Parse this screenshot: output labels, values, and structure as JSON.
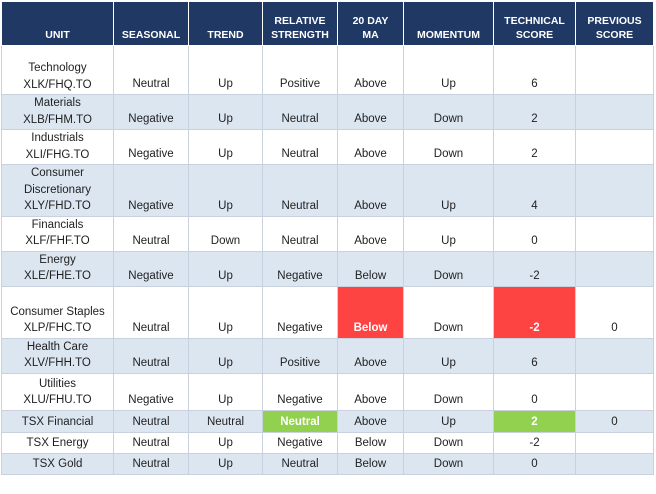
{
  "headers": {
    "unit": "UNIT",
    "seasonal": "SEASONAL",
    "trend": "TREND",
    "relative_strength_1": "RELATIVE",
    "relative_strength_2": "STRENGTH",
    "ma_1": "20 DAY",
    "ma_2": "MA",
    "momentum": "MOMENTUM",
    "technical_score_1": "TECHNICAL",
    "technical_score_2": "SCORE",
    "previous_score_1": "PREVIOUS",
    "previous_score_2": "SCORE"
  },
  "colors": {
    "header_bg": "#1f3864",
    "row_shade": "#dce6f1",
    "highlight_red": "#fe4343",
    "highlight_green": "#92d050"
  },
  "rows": [
    {
      "unit_lines": [
        "Technology",
        "XLK/FHQ.TO"
      ],
      "seasonal": "Neutral",
      "trend": "Up",
      "relative_strength": "Positive",
      "ma": "Above",
      "momentum": "Up",
      "technical_score": "6",
      "previous_score": ""
    },
    {
      "unit_lines": [
        "Materials",
        "XLB/FHM.TO"
      ],
      "seasonal": "Negative",
      "trend": "Up",
      "relative_strength": "Neutral",
      "ma": "Above",
      "momentum": "Down",
      "technical_score": "2",
      "previous_score": ""
    },
    {
      "unit_lines": [
        "Industrials",
        "XLI/FHG.TO"
      ],
      "seasonal": "Negative",
      "trend": "Up",
      "relative_strength": "Neutral",
      "ma": "Above",
      "momentum": "Down",
      "technical_score": "2",
      "previous_score": ""
    },
    {
      "unit_lines": [
        "Consumer",
        "Discretionary",
        "XLY/FHD.TO"
      ],
      "seasonal": "Negative",
      "trend": "Up",
      "relative_strength": "Neutral",
      "ma": "Above",
      "momentum": "Up",
      "technical_score": "4",
      "previous_score": ""
    },
    {
      "unit_lines": [
        "Financials",
        "XLF/FHF.TO"
      ],
      "seasonal": "Neutral",
      "trend": "Down",
      "relative_strength": "Neutral",
      "ma": "Above",
      "momentum": "Up",
      "technical_score": "0",
      "previous_score": ""
    },
    {
      "unit_lines": [
        "Energy",
        "XLE/FHE.TO"
      ],
      "seasonal": "Negative",
      "trend": "Up",
      "relative_strength": "Negative",
      "ma": "Below",
      "momentum": "Down",
      "technical_score": "-2",
      "previous_score": ""
    },
    {
      "unit_lines": [
        "Consumer Staples",
        "XLP/FHC.TO"
      ],
      "seasonal": "Neutral",
      "trend": "Up",
      "relative_strength": "Negative",
      "ma": "Below",
      "momentum": "Down",
      "technical_score": "-2",
      "previous_score": "0"
    },
    {
      "unit_lines": [
        "Health Care",
        "XLV/FHH.TO"
      ],
      "seasonal": "Neutral",
      "trend": "Up",
      "relative_strength": "Positive",
      "ma": "Above",
      "momentum": "Up",
      "technical_score": "6",
      "previous_score": ""
    },
    {
      "unit_lines": [
        "Utilities",
        "XLU/FHU.TO"
      ],
      "seasonal": "Negative",
      "trend": "Up",
      "relative_strength": "Negative",
      "ma": "Above",
      "momentum": "Down",
      "technical_score": "0",
      "previous_score": ""
    },
    {
      "unit_lines": [
        "TSX Financial"
      ],
      "seasonal": "Neutral",
      "trend": "Neutral",
      "relative_strength": "Neutral",
      "ma": "Above",
      "momentum": "Up",
      "technical_score": "2",
      "previous_score": "0"
    },
    {
      "unit_lines": [
        "TSX Energy"
      ],
      "seasonal": "Neutral",
      "trend": "Up",
      "relative_strength": "Negative",
      "ma": "Below",
      "momentum": "Down",
      "technical_score": "-2",
      "previous_score": ""
    },
    {
      "unit_lines": [
        "TSX Gold"
      ],
      "seasonal": "Neutral",
      "trend": "Up",
      "relative_strength": "Neutral",
      "ma": "Below",
      "momentum": "Down",
      "technical_score": "0",
      "previous_score": ""
    }
  ]
}
